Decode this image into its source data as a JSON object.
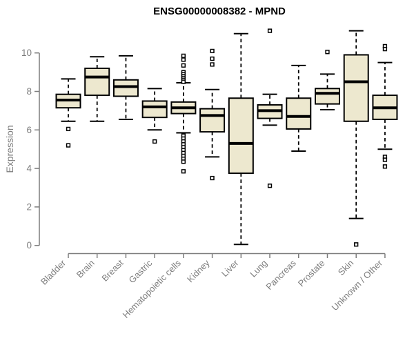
{
  "title": "ENSG00000008382 - MPND",
  "chart_data": {
    "type": "boxplot",
    "title": "ENSG00000008382 - MPND",
    "ylabel": "Expression",
    "xlabel": "",
    "ylim": [
      0,
      11.3
    ],
    "yticks": [
      "0",
      "2",
      "4",
      "6",
      "8",
      "10"
    ],
    "ytick_values": [
      0,
      2,
      4,
      6,
      8,
      10
    ],
    "grid": "off",
    "legend": "none",
    "categories": [
      "Bladder",
      "Brain",
      "Breast",
      "Gastric",
      "Hematopoietic cells",
      "Kidney",
      "Liver",
      "Lung",
      "Pancreas",
      "Prostate",
      "Skin",
      "Unknown / Other"
    ],
    "series": [
      {
        "category": "Bladder",
        "whisker_low": 6.45,
        "q1": 7.15,
        "median": 7.55,
        "q3": 7.85,
        "whisker_high": 8.65,
        "outliers": [
          6.05,
          5.2
        ]
      },
      {
        "category": "Brain",
        "whisker_low": 6.45,
        "q1": 7.8,
        "median": 8.75,
        "q3": 9.2,
        "whisker_high": 9.8,
        "outliers": []
      },
      {
        "category": "Breast",
        "whisker_low": 6.55,
        "q1": 7.75,
        "median": 8.25,
        "q3": 8.6,
        "whisker_high": 9.85,
        "outliers": []
      },
      {
        "category": "Gastric",
        "whisker_low": 6.0,
        "q1": 6.65,
        "median": 7.2,
        "q3": 7.5,
        "whisker_high": 8.15,
        "outliers": [
          5.4
        ]
      },
      {
        "category": "Hematopoietic cells",
        "whisker_low": 5.85,
        "q1": 6.85,
        "median": 7.15,
        "q3": 7.45,
        "whisker_high": 8.45,
        "outliers": [
          9.85,
          9.65,
          9.35,
          9.0,
          8.9,
          8.8,
          8.7,
          8.6,
          8.5,
          5.7,
          5.55,
          5.4,
          5.25,
          5.1,
          4.95,
          4.8,
          4.65,
          4.5,
          4.35,
          3.85
        ]
      },
      {
        "category": "Kidney",
        "whisker_low": 4.6,
        "q1": 5.9,
        "median": 6.75,
        "q3": 7.1,
        "whisker_high": 8.1,
        "outliers": [
          10.1,
          9.7,
          9.4,
          3.5
        ]
      },
      {
        "category": "Liver",
        "whisker_low": 0.05,
        "q1": 3.75,
        "median": 5.3,
        "q3": 7.65,
        "whisker_high": 11.0,
        "outliers": []
      },
      {
        "category": "Lung",
        "whisker_low": 6.25,
        "q1": 6.6,
        "median": 7.0,
        "q3": 7.3,
        "whisker_high": 7.85,
        "outliers": [
          11.15,
          3.1
        ]
      },
      {
        "category": "Pancreas",
        "whisker_low": 4.9,
        "q1": 6.05,
        "median": 6.7,
        "q3": 7.65,
        "whisker_high": 9.35,
        "outliers": []
      },
      {
        "category": "Prostate",
        "whisker_low": 7.05,
        "q1": 7.35,
        "median": 7.9,
        "q3": 8.15,
        "whisker_high": 8.9,
        "outliers": [
          10.05
        ]
      },
      {
        "category": "Skin",
        "whisker_low": 1.4,
        "q1": 6.45,
        "median": 8.5,
        "q3": 9.9,
        "whisker_high": 11.15,
        "outliers": [
          0.05
        ]
      },
      {
        "category": "Unknown / Other",
        "whisker_low": 5.0,
        "q1": 6.55,
        "median": 7.15,
        "q3": 7.8,
        "whisker_high": 9.5,
        "outliers": [
          10.35,
          10.2,
          4.6,
          4.45,
          4.1
        ]
      }
    ],
    "colors": {
      "box_fill": "#EDE8CF",
      "box_border": "#000000",
      "median": "#000000",
      "whisker": "#000000",
      "outlier_fill": "#ffffff",
      "outlier_border": "#000000",
      "axis": "#7d7d7d",
      "tick_labels": "#7d7d7d",
      "title": "#000000",
      "background": "#ffffff"
    }
  }
}
